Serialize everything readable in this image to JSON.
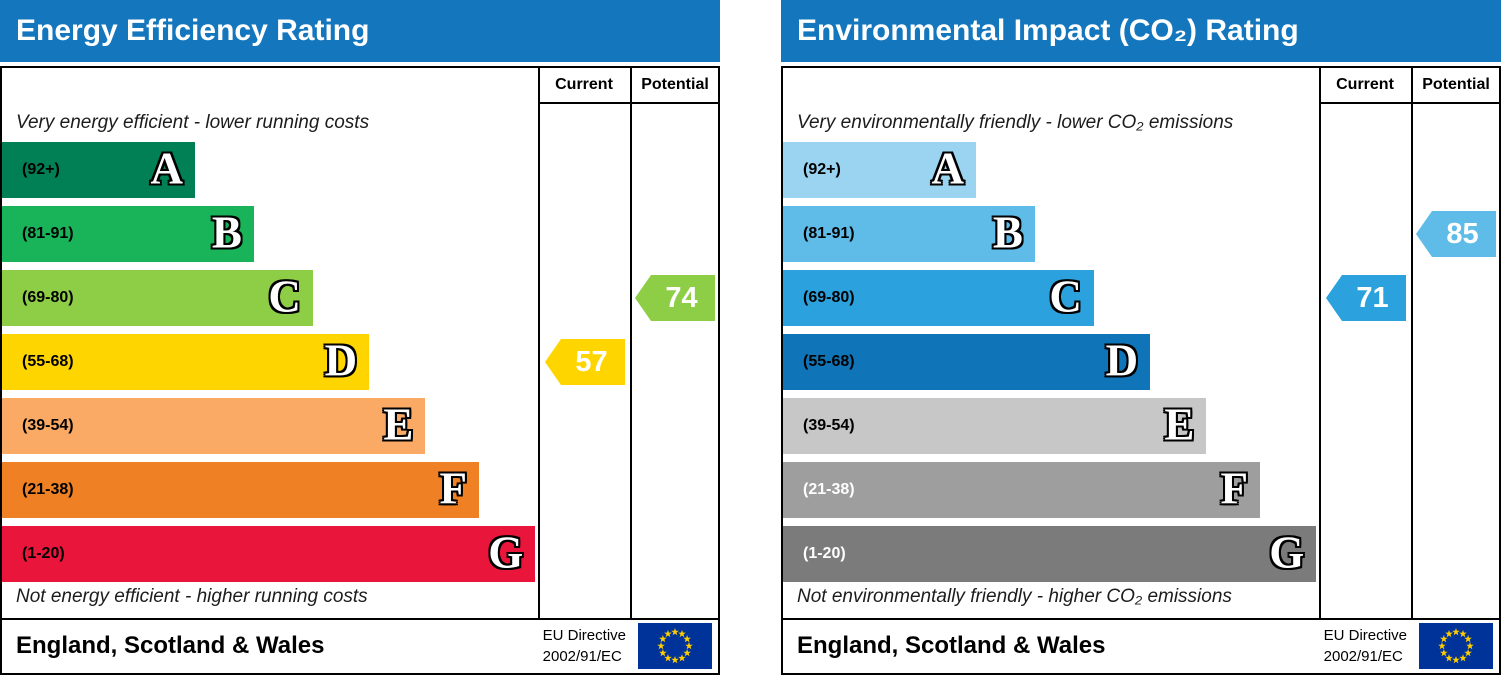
{
  "charts": [
    {
      "title": "Energy Efficiency Rating",
      "header_color": "#1477be",
      "columns": {
        "current": "Current",
        "potential": "Potential"
      },
      "top_note": "Very energy efficient - lower running costs",
      "bottom_note": "Not energy efficient - higher running costs",
      "bands": [
        {
          "letter": "A",
          "range": "(92+)",
          "color": "#008054",
          "width_pct": 36,
          "label_color": "#000000"
        },
        {
          "letter": "B",
          "range": "(81-91)",
          "color": "#19b459",
          "width_pct": 47,
          "label_color": "#000000"
        },
        {
          "letter": "C",
          "range": "(69-80)",
          "color": "#8dce46",
          "width_pct": 58,
          "label_color": "#000000"
        },
        {
          "letter": "D",
          "range": "(55-68)",
          "color": "#ffd500",
          "width_pct": 68.5,
          "label_color": "#000000"
        },
        {
          "letter": "E",
          "range": "(39-54)",
          "color": "#fbaa65",
          "width_pct": 79,
          "label_color": "#000000"
        },
        {
          "letter": "F",
          "range": "(21-38)",
          "color": "#ef8023",
          "width_pct": 89,
          "label_color": "#000000"
        },
        {
          "letter": "G",
          "range": "(1-20)",
          "color": "#e9153b",
          "width_pct": 99.5,
          "label_color": "#000000"
        }
      ],
      "current": {
        "value": "57",
        "band": "D",
        "color": "#ffd500"
      },
      "potential": {
        "value": "74",
        "band": "C",
        "color": "#8dce46"
      },
      "footer": {
        "region": "England, Scotland & Wales",
        "directive_line1": "EU Directive",
        "directive_line2": "2002/91/EC"
      }
    },
    {
      "title": "Environmental Impact (CO₂) Rating",
      "header_color": "#1477be",
      "columns": {
        "current": "Current",
        "potential": "Potential"
      },
      "top_note": "Very environmentally friendly - lower CO₂ emissions",
      "bottom_note": "Not environmentally friendly - higher CO₂ emissions",
      "bands": [
        {
          "letter": "A",
          "range": "(92+)",
          "color": "#9bd4f1",
          "width_pct": 36,
          "label_color": "#000000"
        },
        {
          "letter": "B",
          "range": "(81-91)",
          "color": "#5fbce9",
          "width_pct": 47,
          "label_color": "#000000"
        },
        {
          "letter": "C",
          "range": "(69-80)",
          "color": "#2ba2dd",
          "width_pct": 58,
          "label_color": "#000000"
        },
        {
          "letter": "D",
          "range": "(55-68)",
          "color": "#1074b8",
          "width_pct": 68.5,
          "label_color": "#000000"
        },
        {
          "letter": "E",
          "range": "(39-54)",
          "color": "#c7c7c7",
          "width_pct": 79,
          "label_color": "#000000"
        },
        {
          "letter": "F",
          "range": "(21-38)",
          "color": "#9e9e9e",
          "width_pct": 89,
          "label_color": "#ffffff"
        },
        {
          "letter": "G",
          "range": "(1-20)",
          "color": "#7b7b7b",
          "width_pct": 99.5,
          "label_color": "#ffffff"
        }
      ],
      "current": {
        "value": "71",
        "band": "C",
        "color": "#2ba2dd"
      },
      "potential": {
        "value": "85",
        "band": "B",
        "color": "#5fbce9"
      },
      "footer": {
        "region": "England, Scotland & Wales",
        "directive_line1": "EU Directive",
        "directive_line2": "2002/91/EC"
      }
    }
  ],
  "flag_colors": {
    "background": "#003399",
    "star": "#ffcc00"
  },
  "chart_data": [
    {
      "type": "bar",
      "title": "Energy Efficiency Rating",
      "categories": [
        "A (92+)",
        "B (81-91)",
        "C (69-80)",
        "D (55-68)",
        "E (39-54)",
        "F (21-38)",
        "G (1-20)"
      ],
      "series": [
        {
          "name": "Current",
          "value": 57,
          "band": "D"
        },
        {
          "name": "Potential",
          "value": 74,
          "band": "C"
        }
      ],
      "ylim": [
        1,
        100
      ],
      "region": "England, Scotland & Wales",
      "directive": "EU Directive 2002/91/EC"
    },
    {
      "type": "bar",
      "title": "Environmental Impact (CO₂) Rating",
      "categories": [
        "A (92+)",
        "B (81-91)",
        "C (69-80)",
        "D (55-68)",
        "E (39-54)",
        "F (21-38)",
        "G (1-20)"
      ],
      "series": [
        {
          "name": "Current",
          "value": 71,
          "band": "C"
        },
        {
          "name": "Potential",
          "value": 85,
          "band": "B"
        }
      ],
      "ylim": [
        1,
        100
      ],
      "region": "England, Scotland & Wales",
      "directive": "EU Directive 2002/91/EC"
    }
  ]
}
